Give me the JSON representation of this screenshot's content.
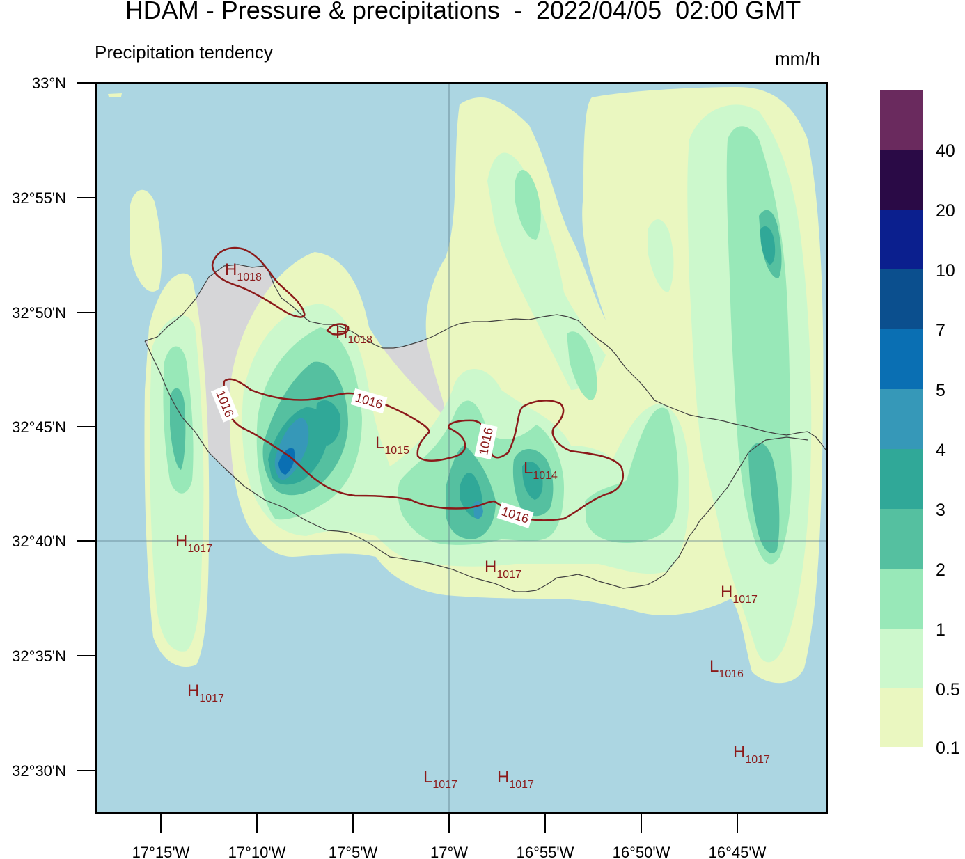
{
  "title": "HDAM - Pressure & precipitations  -  2022/04/05  02:00 GMT",
  "subtitle": "Precipitation tendency",
  "unit": "mm/h",
  "lat_labels": [
    "33°N",
    "32°55'N",
    "32°50'N",
    "32°45'N",
    "32°40'N",
    "32°35'N",
    "32°30'N"
  ],
  "lon_labels": [
    "17°15'W",
    "17°10'W",
    "17°5'W",
    "17°W",
    "16°55'W",
    "16°50'W",
    "16°45'W"
  ],
  "colorbar": {
    "labels": [
      "40",
      "20",
      "10",
      "7",
      "5",
      "4",
      "3",
      "2",
      "1",
      "0.5",
      "0.1"
    ],
    "colors": [
      "#6a2a5e",
      "#2a0a46",
      "#0b1f8e",
      "#0b4f8e",
      "#0a6fb3",
      "#3698b8",
      "#30a898",
      "#55c0a0",
      "#98e8b8",
      "#ccf8cc",
      "#eaf7c0"
    ]
  },
  "colors": {
    "sea": "#acd6e2",
    "land": "#d6d6d8",
    "coast": "#404040",
    "isobar": "#8b1a1a"
  },
  "isobar_labels": [
    "1016",
    "1016",
    "1016",
    "1016"
  ],
  "pressure_centers": [
    {
      "type": "H",
      "value": "1018"
    },
    {
      "type": "H",
      "value": "1018"
    },
    {
      "type": "L",
      "value": "1015"
    },
    {
      "type": "L",
      "value": "1014"
    },
    {
      "type": "H",
      "value": "1017"
    },
    {
      "type": "H",
      "value": "1017"
    },
    {
      "type": "H",
      "value": "1017"
    },
    {
      "type": "L",
      "value": "1016"
    },
    {
      "type": "H",
      "value": "1017"
    },
    {
      "type": "H",
      "value": "1017"
    },
    {
      "type": "L",
      "value": "1017"
    },
    {
      "type": "H",
      "value": "1017"
    }
  ]
}
